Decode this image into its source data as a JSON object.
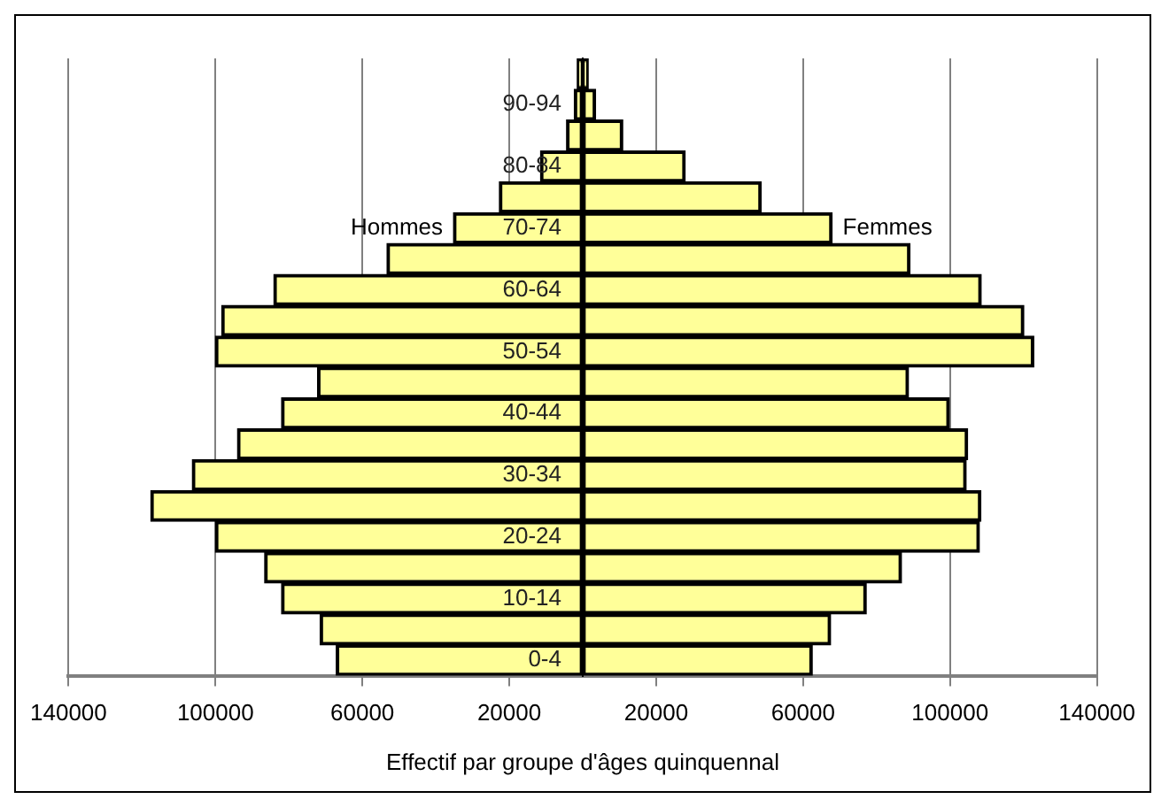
{
  "chart_data": {
    "type": "bar",
    "orientation": "horizontal",
    "xlabel": "Effectif par groupe d'âges quinquennal",
    "categories": [
      null,
      "90-94",
      null,
      "80-84",
      null,
      "70-74",
      null,
      "60-64",
      null,
      "50-54",
      null,
      "40-44",
      null,
      "30-34",
      null,
      "20-24",
      null,
      "10-14",
      null,
      "0-4"
    ],
    "series": [
      {
        "name": "Hommes",
        "color": "#ffff99",
        "values": [
          -1500,
          -2300,
          -4400,
          -11500,
          -22700,
          -35200,
          -53300,
          -84100,
          -98300,
          -100000,
          -72200,
          -82000,
          -94000,
          -106300,
          -117600,
          -100000,
          -86600,
          -82000,
          -71500,
          -67100
        ]
      },
      {
        "name": "Femmes",
        "color": "#ffff99",
        "values": [
          1500,
          3500,
          10900,
          27900,
          48600,
          67900,
          89100,
          108500,
          120100,
          122800,
          88700,
          99800,
          104800,
          104400,
          108400,
          108000,
          86800,
          77200,
          67500,
          62500
        ]
      }
    ],
    "xlim": [
      -140000,
      140000
    ],
    "xticks": [
      {
        "value": -140000,
        "label": "140000"
      },
      {
        "value": -100000,
        "label": "100000"
      },
      {
        "value": -60000,
        "label": "60000"
      },
      {
        "value": -20000,
        "label": "20000"
      },
      {
        "value": 20000,
        "label": "20000"
      },
      {
        "value": 60000,
        "label": "60000"
      },
      {
        "value": 100000,
        "label": "100000"
      },
      {
        "value": 140000,
        "label": "140000"
      }
    ],
    "grid": "x",
    "legend": false,
    "stacked": true
  }
}
